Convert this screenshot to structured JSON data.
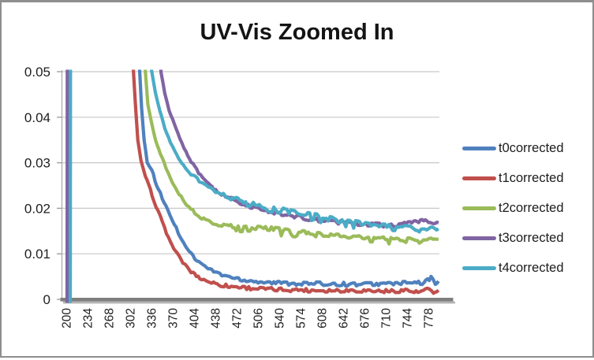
{
  "chart_data": {
    "type": "line",
    "title": "UV-Vis Zoomed In",
    "xlabel": "",
    "ylabel": "",
    "x_tick_labels": [
      "200",
      "234",
      "268",
      "302",
      "336",
      "370",
      "404",
      "438",
      "472",
      "506",
      "540",
      "574",
      "608",
      "642",
      "676",
      "710",
      "744",
      "778"
    ],
    "x_tick_values": [
      200,
      234,
      268,
      302,
      336,
      370,
      404,
      438,
      472,
      506,
      540,
      574,
      608,
      642,
      676,
      710,
      744,
      778
    ],
    "y_tick_labels": [
      "0",
      "0.01",
      "0.02",
      "0.03",
      "0.04",
      "0.05"
    ],
    "y_tick_values": [
      0,
      0.01,
      0.02,
      0.03,
      0.04,
      0.05
    ],
    "xlim": [
      200,
      794
    ],
    "ylim": [
      0,
      0.05
    ],
    "grid": true,
    "legend_position": "right",
    "axis_color": "#7f7f7f",
    "gridline_color": "#c8c8c8",
    "series": [
      {
        "name": "t0corrected",
        "color": "#4F81BD",
        "dips": false,
        "points": [
          [
            201,
            -0.01
          ],
          [
            201.5,
            0.07
          ],
          [
            313,
            0.07
          ],
          [
            316,
            0.05
          ],
          [
            319,
            0.042
          ],
          [
            323,
            0.035
          ],
          [
            328,
            0.0302
          ],
          [
            335,
            0.0285
          ],
          [
            343,
            0.0252
          ],
          [
            352,
            0.0222
          ],
          [
            361,
            0.0196
          ],
          [
            371,
            0.0166
          ],
          [
            381,
            0.0137
          ],
          [
            392,
            0.0112
          ],
          [
            404,
            0.009
          ],
          [
            417,
            0.0075
          ],
          [
            431,
            0.0063
          ],
          [
            447,
            0.0054
          ],
          [
            464,
            0.0048
          ],
          [
            483,
            0.0043
          ],
          [
            505,
            0.0039
          ],
          [
            530,
            0.0036
          ],
          [
            560,
            0.0035
          ],
          [
            595,
            0.0034
          ],
          [
            630,
            0.0034
          ],
          [
            665,
            0.0033
          ],
          [
            700,
            0.0034
          ],
          [
            730,
            0.0035
          ],
          [
            755,
            0.0036
          ],
          [
            770,
            0.0036
          ],
          [
            781,
            0.0047
          ],
          [
            788,
            0.0035
          ],
          [
            793,
            0.004
          ]
        ]
      },
      {
        "name": "t1corrected",
        "color": "#C0504D",
        "dips": false,
        "points": [
          [
            202,
            -0.01
          ],
          [
            202.5,
            0.07
          ],
          [
            303,
            0.07
          ],
          [
            306,
            0.05
          ],
          [
            309,
            0.043
          ],
          [
            313,
            0.035
          ],
          [
            318,
            0.0305
          ],
          [
            325,
            0.027
          ],
          [
            333,
            0.024
          ],
          [
            342,
            0.0205
          ],
          [
            352,
            0.017
          ],
          [
            362,
            0.0135
          ],
          [
            373,
            0.0105
          ],
          [
            385,
            0.0081
          ],
          [
            398,
            0.006
          ],
          [
            412,
            0.0047
          ],
          [
            428,
            0.0038
          ],
          [
            445,
            0.0032
          ],
          [
            465,
            0.0028
          ],
          [
            490,
            0.0025
          ],
          [
            520,
            0.0022
          ],
          [
            560,
            0.0021
          ],
          [
            600,
            0.002
          ],
          [
            640,
            0.002
          ],
          [
            680,
            0.0019
          ],
          [
            715,
            0.0018
          ],
          [
            740,
            0.002
          ],
          [
            760,
            0.0015
          ],
          [
            775,
            0.0022
          ],
          [
            785,
            0.0013
          ],
          [
            793,
            0.002
          ]
        ]
      },
      {
        "name": "t2corrected",
        "color": "#9BBB59",
        "dips": true,
        "points": [
          [
            203,
            -0.01
          ],
          [
            203.5,
            0.07
          ],
          [
            322,
            0.07
          ],
          [
            325,
            0.05
          ],
          [
            329,
            0.043
          ],
          [
            334,
            0.0395
          ],
          [
            341,
            0.0352
          ],
          [
            349,
            0.0318
          ],
          [
            358,
            0.0288
          ],
          [
            368,
            0.0258
          ],
          [
            379,
            0.0232
          ],
          [
            391,
            0.0209
          ],
          [
            404,
            0.019
          ],
          [
            418,
            0.0176
          ],
          [
            433,
            0.0168
          ],
          [
            450,
            0.0163
          ],
          [
            470,
            0.016
          ],
          [
            495,
            0.0158
          ],
          [
            520,
            0.0156
          ],
          [
            545,
            0.0152
          ],
          [
            570,
            0.0148
          ],
          [
            600,
            0.0144
          ],
          [
            630,
            0.014
          ],
          [
            660,
            0.0137
          ],
          [
            690,
            0.0134
          ],
          [
            720,
            0.0132
          ],
          [
            750,
            0.0131
          ],
          [
            775,
            0.013
          ],
          [
            793,
            0.0132
          ]
        ]
      },
      {
        "name": "t3corrected",
        "color": "#8064A2",
        "dips": false,
        "points": [
          [
            200,
            -0.01
          ],
          [
            200.5,
            0.07
          ],
          [
            346,
            0.07
          ],
          [
            350,
            0.05
          ],
          [
            356,
            0.0452
          ],
          [
            363,
            0.0415
          ],
          [
            371,
            0.0385
          ],
          [
            380,
            0.0352
          ],
          [
            390,
            0.0322
          ],
          [
            401,
            0.0296
          ],
          [
            413,
            0.0272
          ],
          [
            426,
            0.0253
          ],
          [
            440,
            0.0237
          ],
          [
            456,
            0.0224
          ],
          [
            473,
            0.0213
          ],
          [
            492,
            0.0204
          ],
          [
            512,
            0.0197
          ],
          [
            534,
            0.019
          ],
          [
            557,
            0.0184
          ],
          [
            580,
            0.0178
          ],
          [
            605,
            0.0173
          ],
          [
            630,
            0.017
          ],
          [
            655,
            0.0167
          ],
          [
            680,
            0.0164
          ],
          [
            705,
            0.0163
          ],
          [
            730,
            0.0164
          ],
          [
            750,
            0.0167
          ],
          [
            764,
            0.0174
          ],
          [
            772,
            0.0177
          ],
          [
            780,
            0.0168
          ],
          [
            788,
            0.0163
          ],
          [
            793,
            0.0168
          ]
        ]
      },
      {
        "name": "t4corrected",
        "color": "#4BACC6",
        "dips": true,
        "points": [
          [
            205,
            -0.01
          ],
          [
            205.5,
            0.07
          ],
          [
            331,
            0.07
          ],
          [
            335,
            0.05
          ],
          [
            341,
            0.0452
          ],
          [
            348,
            0.0412
          ],
          [
            356,
            0.0378
          ],
          [
            365,
            0.0346
          ],
          [
            375,
            0.0318
          ],
          [
            386,
            0.0295
          ],
          [
            398,
            0.0276
          ],
          [
            411,
            0.026
          ],
          [
            425,
            0.0247
          ],
          [
            440,
            0.0236
          ],
          [
            456,
            0.0227
          ],
          [
            473,
            0.0219
          ],
          [
            491,
            0.0212
          ],
          [
            510,
            0.0206
          ],
          [
            530,
            0.02
          ],
          [
            551,
            0.0195
          ],
          [
            573,
            0.019
          ],
          [
            596,
            0.0184
          ],
          [
            620,
            0.0178
          ],
          [
            645,
            0.0172
          ],
          [
            670,
            0.0167
          ],
          [
            695,
            0.0163
          ],
          [
            720,
            0.016
          ],
          [
            745,
            0.0158
          ],
          [
            768,
            0.0156
          ],
          [
            793,
            0.0155
          ]
        ]
      }
    ]
  }
}
